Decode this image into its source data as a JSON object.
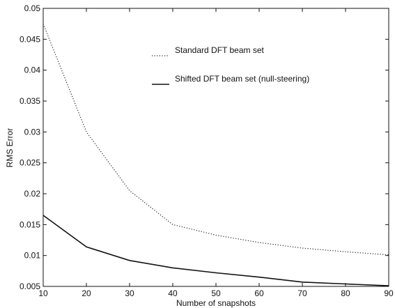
{
  "chart_data": {
    "type": "line",
    "title": "",
    "xlabel": "Number of snapshots",
    "ylabel": "RMS Error",
    "xlim": [
      10,
      90
    ],
    "ylim": [
      0.005,
      0.05
    ],
    "xticks": [
      10,
      20,
      30,
      40,
      50,
      60,
      70,
      80,
      90
    ],
    "xtick_labels": [
      "10",
      "20",
      "30",
      "40",
      "50",
      "60",
      "70",
      "80",
      "90"
    ],
    "yticks": [
      0.005,
      0.01,
      0.015,
      0.02,
      0.025,
      0.03,
      0.035,
      0.04,
      0.045,
      0.05
    ],
    "ytick_labels": [
      "0.005",
      "0.01",
      "0.015",
      "0.02",
      "0.025",
      "0.03",
      "0.035",
      "0.04",
      "0.045",
      "0.05"
    ],
    "grid": false,
    "legend_position": "top-right",
    "x": [
      10,
      20,
      30,
      40,
      50,
      60,
      70,
      80,
      90
    ],
    "series": [
      {
        "name": "Standard DFT beam set",
        "style": "dotted",
        "color": "#222222",
        "values": [
          0.0475,
          0.03,
          0.0205,
          0.015,
          0.0133,
          0.0121,
          0.0112,
          0.0106,
          0.0101
        ]
      },
      {
        "name": "Shifted DFT beam set (null-steering)",
        "style": "solid",
        "color": "#111111",
        "values": [
          0.0165,
          0.0114,
          0.0092,
          0.008,
          0.0072,
          0.0065,
          0.0057,
          0.0054,
          0.0051
        ]
      }
    ]
  }
}
